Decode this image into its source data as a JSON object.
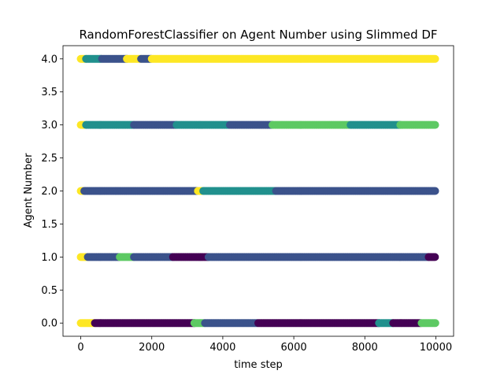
{
  "chart_data": {
    "type": "scatter",
    "title": "RandomForestClassifier on Agent Number using Slimmed DF",
    "xlabel": "time step",
    "ylabel": "Agent Number",
    "xlim": [
      -500,
      10500
    ],
    "ylim": [
      -0.2,
      4.2
    ],
    "xticks": [
      0,
      2000,
      4000,
      6000,
      8000,
      10000
    ],
    "yticks": [
      0.0,
      0.5,
      1.0,
      1.5,
      2.0,
      2.5,
      3.0,
      3.5,
      4.0
    ],
    "xtick_labels": [
      "0",
      "2000",
      "4000",
      "6000",
      "8000",
      "10000"
    ],
    "ytick_labels": [
      "0.0",
      "0.5",
      "1.0",
      "1.5",
      "2.0",
      "2.5",
      "3.0",
      "3.5",
      "4.0"
    ],
    "grid": false,
    "legend": "none",
    "colormap": "viridis",
    "class_colors": {
      "0": "#440154",
      "1": "#3b528b",
      "2": "#21908d",
      "3": "#5dc963",
      "4": "#fde725"
    },
    "x_range": [
      0,
      10000
    ],
    "y_levels": [
      0,
      1,
      2,
      3,
      4
    ],
    "rows": [
      {
        "y": 0,
        "segments": [
          {
            "x_start": 0,
            "x_end": 400,
            "predicted": 4
          },
          {
            "x_start": 400,
            "x_end": 3200,
            "predicted": 0
          },
          {
            "x_start": 3200,
            "x_end": 3500,
            "predicted": 3
          },
          {
            "x_start": 3500,
            "x_end": 5000,
            "predicted": 1
          },
          {
            "x_start": 5000,
            "x_end": 8400,
            "predicted": 0
          },
          {
            "x_start": 8400,
            "x_end": 8800,
            "predicted": 2
          },
          {
            "x_start": 8800,
            "x_end": 9600,
            "predicted": 0
          },
          {
            "x_start": 9600,
            "x_end": 10000,
            "predicted": 3
          }
        ]
      },
      {
        "y": 1,
        "segments": [
          {
            "x_start": 0,
            "x_end": 200,
            "predicted": 4
          },
          {
            "x_start": 200,
            "x_end": 1100,
            "predicted": 1
          },
          {
            "x_start": 1100,
            "x_end": 1500,
            "predicted": 3
          },
          {
            "x_start": 1500,
            "x_end": 2600,
            "predicted": 1
          },
          {
            "x_start": 2600,
            "x_end": 3600,
            "predicted": 0
          },
          {
            "x_start": 3600,
            "x_end": 9800,
            "predicted": 1
          },
          {
            "x_start": 9800,
            "x_end": 10000,
            "predicted": 0
          }
        ]
      },
      {
        "y": 2,
        "segments": [
          {
            "x_start": 0,
            "x_end": 100,
            "predicted": 4
          },
          {
            "x_start": 100,
            "x_end": 1000,
            "predicted": 1
          },
          {
            "x_start": 1000,
            "x_end": 3300,
            "predicted": 1
          },
          {
            "x_start": 3300,
            "x_end": 3450,
            "predicted": 4
          },
          {
            "x_start": 3450,
            "x_end": 5500,
            "predicted": 2
          },
          {
            "x_start": 5500,
            "x_end": 10000,
            "predicted": 1
          }
        ]
      },
      {
        "y": 3,
        "segments": [
          {
            "x_start": 0,
            "x_end": 150,
            "predicted": 4
          },
          {
            "x_start": 150,
            "x_end": 1500,
            "predicted": 2
          },
          {
            "x_start": 1500,
            "x_end": 2700,
            "predicted": 1
          },
          {
            "x_start": 2700,
            "x_end": 4200,
            "predicted": 2
          },
          {
            "x_start": 4200,
            "x_end": 5400,
            "predicted": 1
          },
          {
            "x_start": 5400,
            "x_end": 7600,
            "predicted": 3
          },
          {
            "x_start": 7600,
            "x_end": 9000,
            "predicted": 2
          },
          {
            "x_start": 9000,
            "x_end": 10000,
            "predicted": 3
          }
        ]
      },
      {
        "y": 4,
        "segments": [
          {
            "x_start": 0,
            "x_end": 150,
            "predicted": 4
          },
          {
            "x_start": 150,
            "x_end": 600,
            "predicted": 2
          },
          {
            "x_start": 600,
            "x_end": 1300,
            "predicted": 1
          },
          {
            "x_start": 1300,
            "x_end": 1700,
            "predicted": 4
          },
          {
            "x_start": 1700,
            "x_end": 2000,
            "predicted": 1
          },
          {
            "x_start": 2000,
            "x_end": 10000,
            "predicted": 4
          }
        ]
      }
    ]
  }
}
